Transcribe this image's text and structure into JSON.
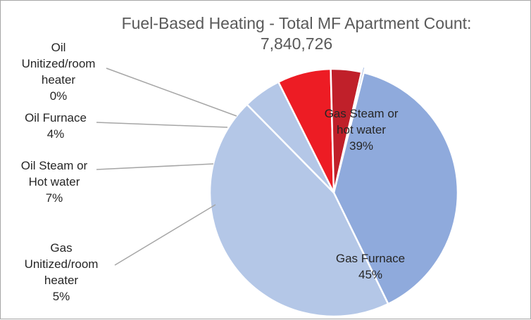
{
  "chart_data": {
    "type": "pie",
    "title_lines": [
      "Fuel-Based Heating - Total MF Apartment Count:",
      "7,840,726"
    ],
    "slices": [
      {
        "label": "Gas Steam or hot water",
        "label_lines": [
          "Gas Steam or",
          "hot water"
        ],
        "value": 39,
        "value_label": "39%",
        "color": "#8faadc"
      },
      {
        "label": "Gas Furnace",
        "label_lines": [
          "Gas Furnace"
        ],
        "value": 45,
        "value_label": "45%",
        "color": "#b4c7e7"
      },
      {
        "label": "Gas Unitized/room heater",
        "label_lines": [
          "Gas",
          "Unitized/room",
          "heater"
        ],
        "value": 5,
        "value_label": "5%",
        "color": "#b4c7e7"
      },
      {
        "label": "Oil Steam or Hot water",
        "label_lines": [
          "Oil Steam or",
          "Hot water"
        ],
        "value": 7,
        "value_label": "7%",
        "color": "#ed1c24"
      },
      {
        "label": "Oil Furnace",
        "label_lines": [
          "Oil Furnace"
        ],
        "value": 4,
        "value_label": "4%",
        "color": "#c0202a"
      },
      {
        "label": "Oil Unitized/room heater",
        "label_lines": [
          "Oil",
          "Unitized/room",
          "heater"
        ],
        "value": 0.3,
        "value_label": "0%",
        "color": "#8faadc"
      }
    ]
  }
}
